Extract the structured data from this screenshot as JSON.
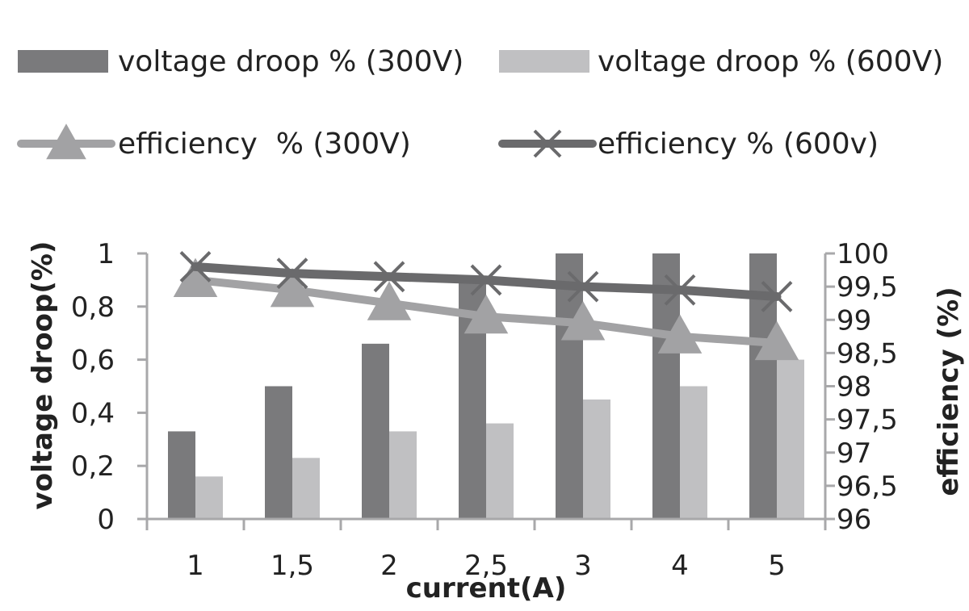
{
  "chart_data": {
    "type": "bar",
    "categories": [
      "1",
      "1,5",
      "2",
      "2,5",
      "3",
      "4",
      "5"
    ],
    "series": [
      {
        "name": "voltage droop % (300V)",
        "kind": "bar",
        "axis": "left",
        "color": "#7a7a7c",
        "values": [
          0.33,
          0.5,
          0.66,
          0.9,
          1,
          1,
          1
        ]
      },
      {
        "name": "voltage droop % (600V)",
        "kind": "bar",
        "axis": "left",
        "color": "#c0c0c2",
        "values": [
          0.16,
          0.23,
          0.33,
          0.36,
          0.45,
          0.5,
          0.6
        ]
      },
      {
        "name": "efficiency  % (300V)",
        "kind": "line",
        "marker": "triangle",
        "axis": "right",
        "color": "#a2a2a4",
        "values": [
          99.6,
          99.45,
          99.25,
          99.05,
          98.95,
          98.75,
          98.65
        ]
      },
      {
        "name": "efficiency % (600v)",
        "kind": "line",
        "marker": "x",
        "axis": "right",
        "color": "#6a6a6c",
        "values": [
          99.8,
          99.7,
          99.65,
          99.6,
          99.5,
          99.45,
          99.35
        ]
      }
    ],
    "xlabel": "current(A)",
    "ylabel": "voltage droop(%)",
    "y2label": "efficiency (%)",
    "ylim": [
      0,
      1
    ],
    "y2lim": [
      96,
      100
    ],
    "yticks": [
      "0",
      "0,2",
      "0,4",
      "0,6",
      "0,8",
      "1"
    ],
    "y2ticks": [
      "96",
      "96,5",
      "97",
      "97,5",
      "98",
      "98,5",
      "99",
      "99,5",
      "100"
    ],
    "legend_position": "top",
    "grid": false
  }
}
